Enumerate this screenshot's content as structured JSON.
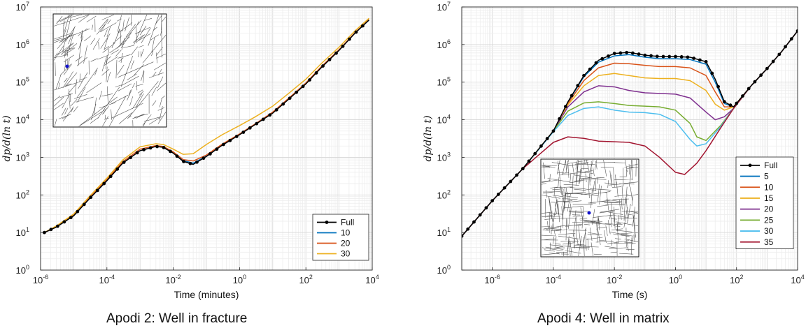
{
  "captions": {
    "left": "Apodi 2: Well in fracture",
    "right": "Apodi 4: Well in matrix"
  },
  "chart_data": [
    {
      "type": "line",
      "xscale": "log",
      "yscale": "log",
      "xlim": [
        1e-06,
        10000.0
      ],
      "ylim": [
        1,
        10000000.0
      ],
      "xticks": [
        1e-06,
        0.0001,
        0.01,
        1,
        100,
        10000
      ],
      "xtick_labels": [
        {
          "base": "10",
          "exp": "-6"
        },
        {
          "base": "10",
          "exp": "-4"
        },
        {
          "base": "10",
          "exp": "-2"
        },
        {
          "base": "10",
          "exp": "0"
        },
        {
          "base": "10",
          "exp": "2"
        },
        {
          "base": "10",
          "exp": "4"
        }
      ],
      "yticks": [
        1,
        10,
        100,
        1000,
        10000,
        100000,
        1000000,
        10000000
      ],
      "ytick_labels": [
        {
          "base": "10",
          "exp": "0"
        },
        {
          "base": "10",
          "exp": "1"
        },
        {
          "base": "10",
          "exp": "2"
        },
        {
          "base": "10",
          "exp": "3"
        },
        {
          "base": "10",
          "exp": "4"
        },
        {
          "base": "10",
          "exp": "5"
        },
        {
          "base": "10",
          "exp": "6"
        },
        {
          "base": "10",
          "exp": "7"
        }
      ],
      "xlabel": "Time (minutes)",
      "ylabel": "dp/d(ln t)",
      "grid": true,
      "legend": "bottom-right",
      "inset": "fracture network map with well marker (upper-left)",
      "series": [
        {
          "name": "Full",
          "color": "#000000",
          "markers": true,
          "x": [
            1.3e-06,
            3e-06,
            1e-05,
            3e-05,
            0.0001,
            0.0003,
            0.001,
            0.003,
            0.005,
            0.01,
            0.02,
            0.04,
            0.1,
            0.3,
            1,
            3,
            10,
            30,
            100,
            300,
            1000,
            3000,
            8000
          ],
          "y": [
            10,
            14,
            28,
            80,
            240,
            700,
            1500,
            1950,
            1850,
            1300,
            780,
            650,
            1050,
            2100,
            4000,
            7500,
            15000,
            35000,
            90000,
            250000,
            700000,
            2000000,
            4500000
          ]
        },
        {
          "name": "10",
          "color": "#0072BD",
          "x": [
            1.3e-06,
            3e-06,
            1e-05,
            3e-05,
            0.0001,
            0.0003,
            0.001,
            0.003,
            0.005,
            0.01,
            0.02,
            0.04,
            0.1,
            0.3,
            1,
            3,
            10,
            30,
            100,
            300,
            1000,
            3000,
            8000
          ],
          "y": [
            10,
            14,
            28,
            80,
            240,
            700,
            1500,
            1950,
            1850,
            1300,
            820,
            700,
            1080,
            2150,
            4100,
            7600,
            15500,
            36000,
            92000,
            260000,
            720000,
            2000000,
            4500000
          ]
        },
        {
          "name": "20",
          "color": "#D95319",
          "x": [
            1.3e-06,
            3e-06,
            1e-05,
            3e-05,
            0.0001,
            0.0003,
            0.001,
            0.003,
            0.005,
            0.01,
            0.02,
            0.04,
            0.1,
            0.3,
            1,
            3,
            10,
            30,
            100,
            300,
            1000,
            3000,
            8000
          ],
          "y": [
            10,
            14,
            29,
            84,
            255,
            760,
            1650,
            2050,
            1950,
            1400,
            870,
            800,
            1150,
            2250,
            4200,
            7800,
            16000,
            37000,
            95000,
            265000,
            730000,
            2050000,
            4600000
          ]
        },
        {
          "name": "30",
          "color": "#EDB120",
          "x": [
            1.3e-06,
            3e-06,
            1e-05,
            3e-05,
            0.0001,
            0.0003,
            0.001,
            0.003,
            0.005,
            0.01,
            0.02,
            0.04,
            0.1,
            0.3,
            1,
            3,
            10,
            30,
            100,
            300,
            1000,
            3000,
            8000
          ],
          "y": [
            10,
            15,
            31,
            92,
            280,
            850,
            1900,
            2300,
            2200,
            1650,
            1200,
            1250,
            2200,
            4000,
            7000,
            12000,
            23000,
            50000,
            120000,
            320000,
            850000,
            2300000,
            5000000
          ]
        }
      ]
    },
    {
      "type": "line",
      "xscale": "log",
      "yscale": "log",
      "xlim": [
        1e-07,
        10000.0
      ],
      "ylim": [
        1,
        10000000.0
      ],
      "xticks": [
        1e-06,
        0.0001,
        0.01,
        1,
        100,
        10000
      ],
      "xtick_labels": [
        {
          "base": "10",
          "exp": "-6"
        },
        {
          "base": "10",
          "exp": "-4"
        },
        {
          "base": "10",
          "exp": "-2"
        },
        {
          "base": "10",
          "exp": "0"
        },
        {
          "base": "10",
          "exp": "2"
        },
        {
          "base": "10",
          "exp": "4"
        }
      ],
      "yticks": [
        1,
        10,
        100,
        1000,
        10000,
        100000,
        1000000,
        10000000
      ],
      "ytick_labels": [
        {
          "base": "10",
          "exp": "0"
        },
        {
          "base": "10",
          "exp": "1"
        },
        {
          "base": "10",
          "exp": "2"
        },
        {
          "base": "10",
          "exp": "3"
        },
        {
          "base": "10",
          "exp": "4"
        },
        {
          "base": "10",
          "exp": "5"
        },
        {
          "base": "10",
          "exp": "6"
        },
        {
          "base": "10",
          "exp": "7"
        }
      ],
      "xlabel": "Time (s)",
      "ylabel": "dp/d(ln t)",
      "grid": true,
      "legend": "right",
      "inset": "fracture network map with well marker (lower-middle)",
      "series": [
        {
          "name": "Full",
          "color": "#000000",
          "markers": true,
          "x": [
            1e-07,
            1e-06,
            1e-05,
            0.0001,
            0.0003,
            0.001,
            0.003,
            0.01,
            0.03,
            0.1,
            0.3,
            1,
            3,
            10,
            20,
            40,
            80,
            300,
            1000,
            3000,
            10000
          ],
          "y": [
            8,
            70,
            500,
            5000,
            30000,
            150000,
            380000,
            580000,
            620000,
            520000,
            480000,
            480000,
            460000,
            350000,
            120000,
            30000,
            22000,
            80000,
            230000,
            650000,
            2300000
          ]
        },
        {
          "name": "5",
          "color": "#0072BD",
          "x": [
            1e-07,
            1e-06,
            1e-05,
            0.0001,
            0.0003,
            0.001,
            0.003,
            0.01,
            0.03,
            0.1,
            0.3,
            1,
            3,
            10,
            20,
            40,
            80,
            300,
            1000,
            3000,
            10000
          ],
          "y": [
            8,
            70,
            500,
            5000,
            29000,
            140000,
            340000,
            500000,
            540000,
            460000,
            420000,
            420000,
            400000,
            300000,
            100000,
            27000,
            22000,
            80000,
            230000,
            650000,
            2300000
          ]
        },
        {
          "name": "10",
          "color": "#D95319",
          "x": [
            1e-07,
            1e-06,
            1e-05,
            0.0001,
            0.0003,
            0.001,
            0.003,
            0.01,
            0.03,
            0.1,
            0.3,
            1,
            3,
            10,
            20,
            40,
            80,
            300,
            1000,
            3000,
            10000
          ],
          "y": [
            8,
            70,
            500,
            5000,
            27000,
            110000,
            240000,
            320000,
            310000,
            280000,
            260000,
            260000,
            240000,
            150000,
            55000,
            22000,
            22000,
            80000,
            230000,
            650000,
            2300000
          ]
        },
        {
          "name": "15",
          "color": "#EDB120",
          "x": [
            1e-07,
            1e-06,
            1e-05,
            0.0001,
            0.0003,
            0.001,
            0.003,
            0.01,
            0.03,
            0.1,
            0.3,
            1,
            3,
            10,
            20,
            40,
            80,
            300,
            1000,
            3000,
            10000
          ],
          "y": [
            8,
            70,
            500,
            5000,
            25000,
            80000,
            150000,
            170000,
            150000,
            130000,
            125000,
            125000,
            110000,
            60000,
            26000,
            18000,
            22000,
            80000,
            230000,
            650000,
            2300000
          ]
        },
        {
          "name": "20",
          "color": "#7E2F8E",
          "x": [
            1e-07,
            1e-06,
            1e-05,
            0.0001,
            0.0003,
            0.001,
            0.003,
            0.01,
            0.03,
            0.1,
            0.3,
            1,
            3,
            10,
            20,
            40,
            80,
            300,
            1000,
            3000,
            10000
          ],
          "y": [
            8,
            70,
            500,
            5000,
            22000,
            55000,
            80000,
            75000,
            60000,
            52000,
            50000,
            48000,
            38000,
            16000,
            10000,
            12000,
            20000,
            80000,
            230000,
            650000,
            2300000
          ]
        },
        {
          "name": "25",
          "color": "#77AC30",
          "x": [
            1e-07,
            1e-06,
            1e-05,
            0.0001,
            0.0003,
            0.001,
            0.003,
            0.01,
            0.03,
            0.1,
            0.3,
            1,
            3,
            5,
            10,
            30,
            80,
            300,
            1000,
            3000,
            10000
          ],
          "y": [
            8,
            70,
            500,
            5000,
            17000,
            28000,
            30000,
            27000,
            24000,
            23000,
            22000,
            18000,
            8000,
            3500,
            2800,
            7000,
            20000,
            80000,
            230000,
            650000,
            2300000
          ]
        },
        {
          "name": "30",
          "color": "#4DBEEE",
          "x": [
            1e-07,
            1e-06,
            1e-05,
            0.0001,
            0.0003,
            0.001,
            0.003,
            0.01,
            0.03,
            0.1,
            0.3,
            1,
            3,
            5,
            10,
            30,
            80,
            300,
            1000,
            3000,
            10000
          ],
          "y": [
            8,
            70,
            500,
            4800,
            13000,
            20000,
            22000,
            18000,
            16000,
            15500,
            14000,
            9000,
            3000,
            2000,
            2300,
            6500,
            20000,
            80000,
            230000,
            650000,
            2300000
          ]
        },
        {
          "name": "35",
          "color": "#A2142F",
          "x": [
            1e-07,
            1e-06,
            1e-05,
            0.0001,
            0.0003,
            0.001,
            0.003,
            0.01,
            0.03,
            0.1,
            0.3,
            1,
            2,
            5,
            10,
            30,
            80,
            300,
            1000,
            3000,
            10000
          ],
          "y": [
            8,
            70,
            500,
            2500,
            3500,
            3200,
            2700,
            2600,
            2500,
            2000,
            1000,
            400,
            350,
            700,
            1500,
            6000,
            20000,
            80000,
            230000,
            650000,
            2300000
          ]
        }
      ]
    }
  ]
}
